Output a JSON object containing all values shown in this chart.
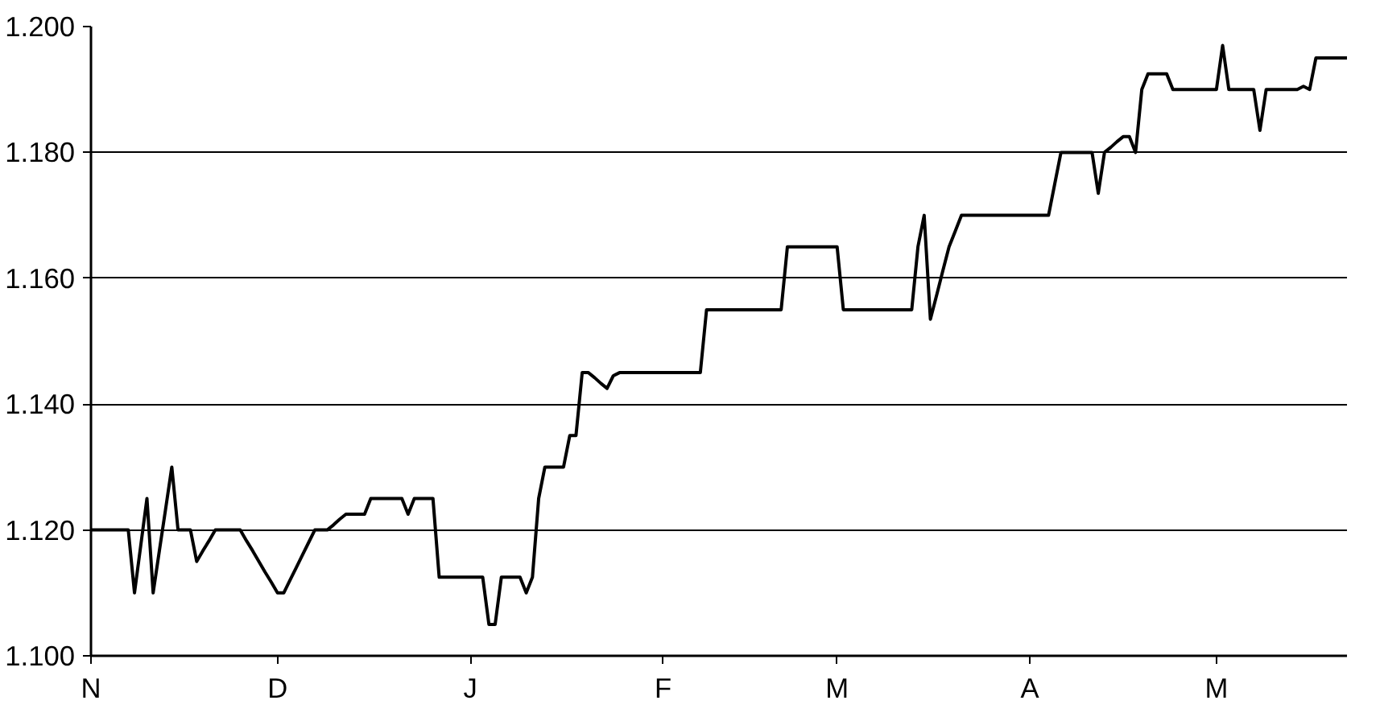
{
  "chart_data": {
    "type": "line",
    "categories": [
      "N",
      null,
      null,
      null,
      null,
      null,
      null,
      null,
      null,
      null,
      null,
      null,
      null,
      null,
      null,
      null,
      null,
      null,
      null,
      null,
      null,
      null,
      null,
      null,
      null,
      null,
      null,
      null,
      null,
      null,
      "D",
      null,
      null,
      null,
      null,
      null,
      null,
      null,
      null,
      null,
      null,
      null,
      null,
      null,
      null,
      null,
      null,
      null,
      null,
      null,
      null,
      null,
      null,
      null,
      null,
      null,
      null,
      null,
      null,
      null,
      null,
      "J",
      null,
      null,
      null,
      null,
      null,
      null,
      null,
      null,
      null,
      null,
      null,
      null,
      null,
      null,
      null,
      null,
      null,
      null,
      null,
      null,
      null,
      null,
      null,
      null,
      null,
      null,
      null,
      null,
      null,
      null,
      "F",
      null,
      null,
      null,
      null,
      null,
      null,
      null,
      null,
      null,
      null,
      null,
      null,
      null,
      null,
      null,
      null,
      null,
      null,
      null,
      null,
      null,
      null,
      null,
      null,
      null,
      null,
      null,
      "M",
      null,
      null,
      null,
      null,
      null,
      null,
      null,
      null,
      null,
      null,
      null,
      null,
      null,
      null,
      null,
      null,
      null,
      null,
      null,
      null,
      null,
      null,
      null,
      null,
      null,
      null,
      null,
      null,
      null,
      null,
      "A",
      null,
      null,
      null,
      null,
      null,
      null,
      null,
      null,
      null,
      null,
      null,
      null,
      null,
      null,
      null,
      null,
      null,
      null,
      null,
      null,
      null,
      null,
      null,
      null,
      null,
      null,
      null,
      null,
      null,
      "M",
      null,
      null,
      null,
      null,
      null,
      null,
      null,
      null,
      null,
      null,
      null,
      null,
      null,
      null,
      null,
      null,
      null,
      null,
      null,
      null,
      null
    ],
    "series": [
      {
        "color": "#000000",
        "values": [
          1.12,
          1.12,
          1.12,
          1.12,
          1.12,
          1.12,
          1.12,
          1.11,
          1.1175,
          1.125,
          1.11,
          1.1167,
          1.1233,
          1.13,
          1.12,
          1.12,
          1.12,
          1.115,
          1.1167,
          1.1183,
          1.12,
          1.12,
          1.12,
          1.12,
          1.12,
          1.1183,
          1.1167,
          1.115,
          1.1133,
          1.1117,
          1.11,
          1.11,
          1.112,
          1.114,
          1.116,
          1.118,
          1.12,
          1.12,
          1.12,
          1.1208,
          1.1217,
          1.1225,
          1.1225,
          1.1225,
          1.1225,
          1.125,
          1.125,
          1.125,
          1.125,
          1.125,
          1.125,
          1.1225,
          1.125,
          1.125,
          1.125,
          1.125,
          1.1125,
          1.1125,
          1.1125,
          1.1125,
          1.1125,
          1.1125,
          1.1125,
          1.1125,
          1.105,
          1.105,
          1.1125,
          1.1125,
          1.1125,
          1.1125,
          1.11,
          1.1125,
          1.125,
          1.13,
          1.13,
          1.13,
          1.13,
          1.135,
          1.135,
          1.145,
          1.145,
          1.1442,
          1.1433,
          1.1425,
          1.1445,
          1.145,
          1.145,
          1.145,
          1.145,
          1.145,
          1.145,
          1.145,
          1.145,
          1.145,
          1.145,
          1.145,
          1.145,
          1.145,
          1.145,
          1.155,
          1.155,
          1.155,
          1.155,
          1.155,
          1.155,
          1.155,
          1.155,
          1.155,
          1.155,
          1.155,
          1.155,
          1.155,
          1.165,
          1.165,
          1.165,
          1.165,
          1.165,
          1.165,
          1.165,
          1.165,
          1.165,
          1.155,
          1.155,
          1.155,
          1.155,
          1.155,
          1.155,
          1.155,
          1.155,
          1.155,
          1.155,
          1.155,
          1.155,
          1.165,
          1.17,
          1.1535,
          1.1573,
          1.1612,
          1.165,
          1.1675,
          1.17,
          1.17,
          1.17,
          1.17,
          1.17,
          1.17,
          1.17,
          1.17,
          1.17,
          1.17,
          1.17,
          1.17,
          1.17,
          1.17,
          1.17,
          1.175,
          1.18,
          1.18,
          1.18,
          1.18,
          1.18,
          1.18,
          1.1735,
          1.18,
          1.1808,
          1.1817,
          1.1825,
          1.1825,
          1.18,
          1.19,
          1.1925,
          1.1925,
          1.1925,
          1.1925,
          1.19,
          1.19,
          1.19,
          1.19,
          1.19,
          1.19,
          1.19,
          1.19,
          1.197,
          1.19,
          1.19,
          1.19,
          1.19,
          1.19,
          1.1835,
          1.19,
          1.19,
          1.19,
          1.19,
          1.19,
          1.19,
          1.1905,
          1.19,
          1.195,
          1.195,
          1.195,
          1.195,
          1.195,
          1.195
        ]
      }
    ],
    "ylim": [
      1.1,
      1.2
    ],
    "yticks": [
      {
        "value": 1.1,
        "label": "1.100"
      },
      {
        "value": 1.12,
        "label": "1.120"
      },
      {
        "value": 1.14,
        "label": "1.140"
      },
      {
        "value": 1.16,
        "label": "1.160"
      },
      {
        "value": 1.18,
        "label": "1.180"
      },
      {
        "value": 1.2,
        "label": "1.200"
      }
    ],
    "grid": "y",
    "marker": "none",
    "line_style": "solid"
  }
}
